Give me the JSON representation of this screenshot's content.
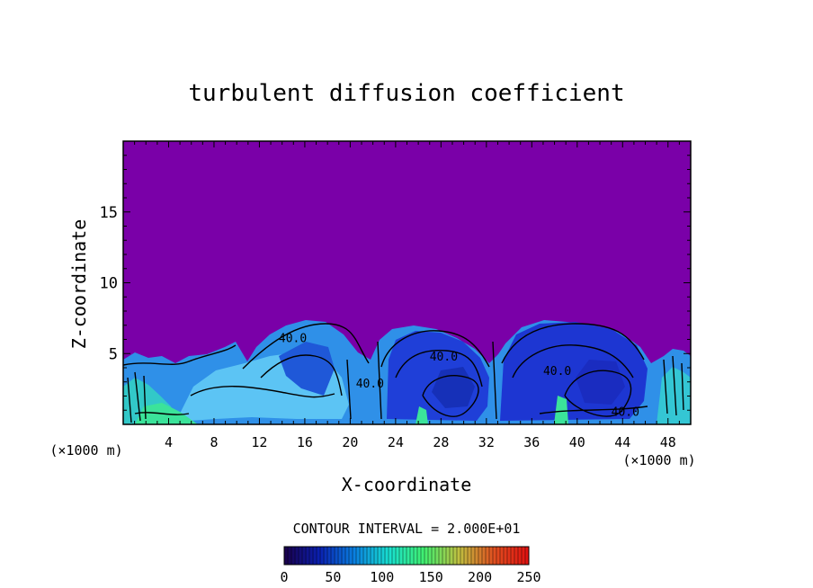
{
  "chart_data": {
    "type": "heatmap",
    "title": "turbulent diffusion coefficient",
    "xlabel": "X-coordinate",
    "ylabel": "Z-coordinate",
    "x_unit_left": "(×1000 m)",
    "x_unit_right": "(×1000 m)",
    "xlim": [
      0,
      50
    ],
    "ylim": [
      0,
      20
    ],
    "x_ticks": [
      4,
      8,
      12,
      16,
      20,
      24,
      28,
      32,
      36,
      40,
      44,
      48
    ],
    "y_ticks": [
      5,
      10,
      15
    ],
    "background_value_color": "#7a00a8",
    "contour_interval_text": "CONTOUR INTERVAL = 2.000E+01",
    "contour_labels": [
      {
        "text": "40.0",
        "x": 13.7,
        "z": 5.8
      },
      {
        "text": "40.0",
        "x": 20.5,
        "z": 2.6
      },
      {
        "text": "40.0",
        "x": 27.0,
        "z": 4.5
      },
      {
        "text": "40.0",
        "x": 37.0,
        "z": 3.5
      },
      {
        "text": "40.0",
        "x": 43.0,
        "z": 0.6
      }
    ],
    "colorbar": {
      "min": 0,
      "max": 250,
      "ticks": [
        "0",
        "50",
        "100",
        "150",
        "200",
        "250"
      ],
      "colors": [
        "#1a004a",
        "#0a1fb0",
        "#0a7fe0",
        "#18e0d0",
        "#40f070",
        "#c0c040",
        "#e05020",
        "#e01010"
      ]
    },
    "cells": [
      {
        "x0": 0.5,
        "x1": 3.5,
        "color": "#3fc8d8"
      },
      {
        "x0": 3.5,
        "x1": 11.5,
        "color": "#55c0f0"
      },
      {
        "x0": 11.5,
        "x1": 19.5,
        "color": "#3aa0ea"
      },
      {
        "x0": 22.5,
        "x1": 32.5,
        "color": "#1e40d8"
      },
      {
        "x0": 33.5,
        "x1": 46.5,
        "color": "#1c38d0"
      },
      {
        "x0": 46.5,
        "x1": 49.5,
        "color": "#3fc8d8"
      }
    ]
  }
}
